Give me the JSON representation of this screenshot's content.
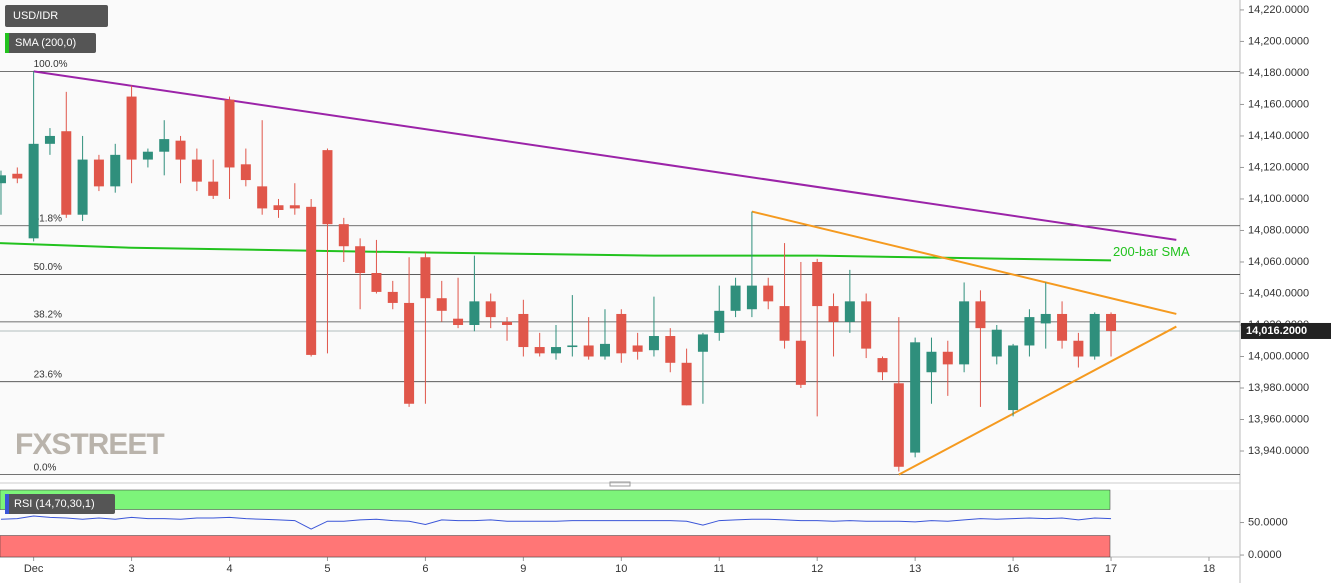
{
  "chart_data": {
    "type": "candlestick",
    "title": "USD/IDR",
    "indicator_label": "SMA (200,0)",
    "watermark": "FXSTREET",
    "up_color": "#2f8f7c",
    "down_color": "#e0564a",
    "ylim": [
      13921.6,
      14226.3
    ],
    "xlim": [
      -0.06,
      75.9
    ],
    "yticks": [
      {
        "value": 13940,
        "label": "13,940.0000"
      },
      {
        "value": 13960,
        "label": "13,960.0000"
      },
      {
        "value": 13980,
        "label": "13,980.0000"
      },
      {
        "value": 14000,
        "label": "14,000.0000"
      },
      {
        "value": 14020,
        "label": "14,020.0000"
      },
      {
        "value": 14040,
        "label": "14,040.0000"
      },
      {
        "value": 14060,
        "label": "14,060.0000"
      },
      {
        "value": 14080,
        "label": "14,080.0000"
      },
      {
        "value": 14100,
        "label": "14,100.0000"
      },
      {
        "value": 14120,
        "label": "14,120.0000"
      },
      {
        "value": 14140,
        "label": "14,140.0000"
      },
      {
        "value": 14160,
        "label": "14,160.0000"
      },
      {
        "value": 14180,
        "label": "14,180.0000"
      },
      {
        "value": 14200,
        "label": "14,200.0000"
      },
      {
        "value": 14220,
        "label": "14,220.0000"
      }
    ],
    "xticks": [
      {
        "value": 2,
        "label": "Dec"
      },
      {
        "value": 8,
        "label": "3"
      },
      {
        "value": 14,
        "label": "4"
      },
      {
        "value": 20,
        "label": "5"
      },
      {
        "value": 26,
        "label": "6"
      },
      {
        "value": 32,
        "label": "9"
      },
      {
        "value": 38,
        "label": "10"
      },
      {
        "value": 44,
        "label": "11"
      },
      {
        "value": 50,
        "label": "12"
      },
      {
        "value": 56,
        "label": "13"
      },
      {
        "value": 62,
        "label": "16"
      },
      {
        "value": 68,
        "label": "17"
      },
      {
        "value": 74,
        "label": "18"
      }
    ],
    "open": [
      14110,
      14116,
      14075,
      14135,
      14143,
      14090,
      14125,
      14108,
      14165,
      14125,
      14130,
      14137,
      14125,
      14111,
      14163,
      14122,
      14108,
      14096,
      14096,
      14095,
      14131,
      14084,
      14070,
      14053,
      14041,
      14034,
      14063,
      14037,
      14024,
      14020,
      14035,
      14022,
      14027,
      14006,
      14002,
      14006,
      14007,
      14000,
      14027,
      14007,
      14004,
      14013,
      13996,
      14003,
      14015,
      14029,
      14030,
      14045,
      14032,
      14010,
      14060,
      14032,
      14022,
      14035,
      13999,
      13983,
      13939,
      13990,
      14003,
      13995,
      14035,
      14000,
      13966,
      14007,
      14021,
      14027,
      14010,
      14000,
      14027
    ],
    "high": [
      14118,
      14120,
      14181,
      14145,
      14168,
      14140,
      14128,
      14135,
      14172,
      14132,
      14150,
      14140,
      14132,
      14125,
      14165,
      14132,
      14150,
      14100,
      14110,
      14100,
      14132,
      14088,
      14075,
      14074,
      14048,
      14063,
      14066,
      14048,
      14050,
      14064,
      14040,
      14025,
      14036,
      14015,
      14020,
      14039,
      14025,
      14030,
      14030,
      14015,
      14038,
      14018,
      14005,
      14015,
      14045,
      14050,
      14092,
      14050,
      14072,
      14060,
      14062,
      14040,
      14055,
      14040,
      14000,
      14025,
      14012,
      14012,
      14010,
      14047,
      14042,
      14020,
      14008,
      14030,
      14047,
      14035,
      14015,
      14028,
      14028
    ],
    "low": [
      14090,
      14110,
      14073,
      14128,
      14088,
      14086,
      14105,
      14104,
      14110,
      14120,
      14115,
      14110,
      14105,
      14100,
      14100,
      14108,
      14090,
      14088,
      14090,
      14000,
      14002,
      14060,
      14030,
      14040,
      14030,
      13968,
      13970,
      14022,
      14018,
      14016,
      14018,
      14010,
      14000,
      14000,
      13998,
      14000,
      13998,
      13998,
      13996,
      13998,
      14000,
      13990,
      13969,
      13970,
      14010,
      14025,
      14025,
      14030,
      14005,
      13980,
      13962,
      14000,
      14015,
      13999,
      13985,
      13927,
      13936,
      13970,
      13975,
      13990,
      13968,
      13995,
      13962,
      14000,
      14005,
      14005,
      13993,
      13998,
      14000
    ],
    "close": [
      14115,
      14113,
      14135,
      14140,
      14090,
      14125,
      14108,
      14128,
      14125,
      14130,
      14138,
      14125,
      14111,
      14102,
      14120,
      14112,
      14094,
      14093,
      14094,
      14001,
      14084,
      14070,
      14053,
      14041,
      14034,
      13970,
      14037,
      14029,
      14020,
      14035,
      14025,
      14020,
      14006,
      14002,
      14006,
      14007,
      14000,
      14008,
      14002,
      14003,
      14013,
      13996,
      13969,
      14014,
      14029,
      14045,
      14045,
      14035,
      14010,
      13982,
      14032,
      14022,
      14035,
      14005,
      13990,
      13930,
      14009,
      14003,
      13995,
      14035,
      14018,
      14017,
      14007,
      14025,
      14027,
      14010,
      14000,
      14027,
      14016.2
    ],
    "sma": {
      "name": "200-bar SMA",
      "color": "#22c21e",
      "x": [
        -0.06,
        8,
        20,
        26,
        40,
        50,
        56,
        62,
        68
      ],
      "values": [
        14072,
        14069,
        14067,
        14066,
        14064,
        14064,
        14063,
        14062,
        14061
      ]
    },
    "trendlines": [
      {
        "color": "#9b23a8",
        "x": [
          2,
          72
        ],
        "values": [
          14181,
          14074
        ]
      },
      {
        "color": "#f59a1f",
        "x": [
          46,
          72
        ],
        "values": [
          14092,
          14027
        ]
      },
      {
        "color": "#f59a1f",
        "x": [
          55,
          72
        ],
        "values": [
          13925,
          14019
        ]
      }
    ],
    "fib_levels": [
      {
        "label": "100.0%",
        "value": 14181
      },
      {
        "label": "61.8%",
        "value": 14083
      },
      {
        "label": "50.0%",
        "value": 14052
      },
      {
        "label": "38.2%",
        "value": 14022
      },
      {
        "label": "23.6%",
        "value": 13984
      },
      {
        "label": "0.0%",
        "value": 13925
      }
    ],
    "last": {
      "value": 14016.2,
      "label": "14,016.2000"
    },
    "rsi": {
      "title": "RSI (14,70,30,1)",
      "color": "#3a55d8",
      "ylim": [
        -3,
        100
      ],
      "yticks": [
        {
          "value": 0,
          "label": "0.0000"
        },
        {
          "value": 50,
          "label": "50.0000"
        }
      ],
      "overbought": 70,
      "oversold": 30,
      "values": [
        55,
        56,
        60,
        58,
        57,
        55,
        57,
        55,
        58,
        56,
        56,
        55,
        57,
        57,
        58,
        56,
        55,
        54,
        53,
        40,
        52,
        52,
        54,
        55,
        53,
        52,
        47,
        54,
        53,
        53,
        54,
        52,
        52,
        52,
        52,
        53,
        53,
        53,
        53,
        53,
        53,
        53,
        52,
        46,
        53,
        54,
        55,
        55,
        54,
        53,
        53,
        52,
        53,
        52,
        52,
        52,
        51,
        53,
        52,
        54,
        56,
        55,
        56,
        57,
        56,
        57,
        54,
        57,
        56
      ]
    }
  }
}
